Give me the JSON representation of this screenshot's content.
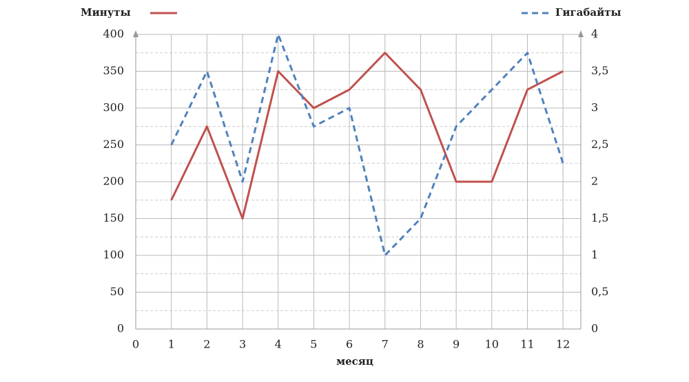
{
  "chart_data": {
    "type": "line",
    "x_label": "месяц",
    "x": [
      1,
      2,
      3,
      4,
      5,
      6,
      7,
      8,
      9,
      10,
      11,
      12
    ],
    "xlim": [
      0,
      12.5
    ],
    "xticks": [
      0,
      1,
      2,
      3,
      4,
      5,
      6,
      7,
      8,
      9,
      10,
      11,
      12
    ],
    "ylim": [
      0,
      400
    ],
    "yticks": [
      0,
      50,
      100,
      150,
      200,
      250,
      300,
      350,
      400
    ],
    "y_minor_ticks": [
      25,
      75,
      125,
      175,
      225,
      275,
      325,
      375
    ],
    "y2lim": [
      0,
      4
    ],
    "y2ticks": [
      0,
      {
        "value": 0.5,
        "label": "0,5"
      },
      1,
      {
        "value": 1.5,
        "label": "1,5"
      },
      2,
      {
        "value": 2.5,
        "label": "2,5"
      },
      3,
      {
        "value": 3.5,
        "label": "3,5"
      },
      4
    ],
    "grid": true,
    "series": [
      {
        "name": "Минуты",
        "color": "#c0504d",
        "values": [
          175,
          275,
          150,
          350,
          300,
          325,
          375,
          325,
          200,
          200,
          325,
          350
        ]
      },
      {
        "name": "Гигабайты",
        "color": "#4f81bd",
        "axis": "y2",
        "dashed": true,
        "values": [
          2.5,
          3.5,
          2,
          4,
          2.75,
          3,
          1,
          1.5,
          2.75,
          3.25,
          3.75,
          2.25
        ]
      }
    ]
  }
}
